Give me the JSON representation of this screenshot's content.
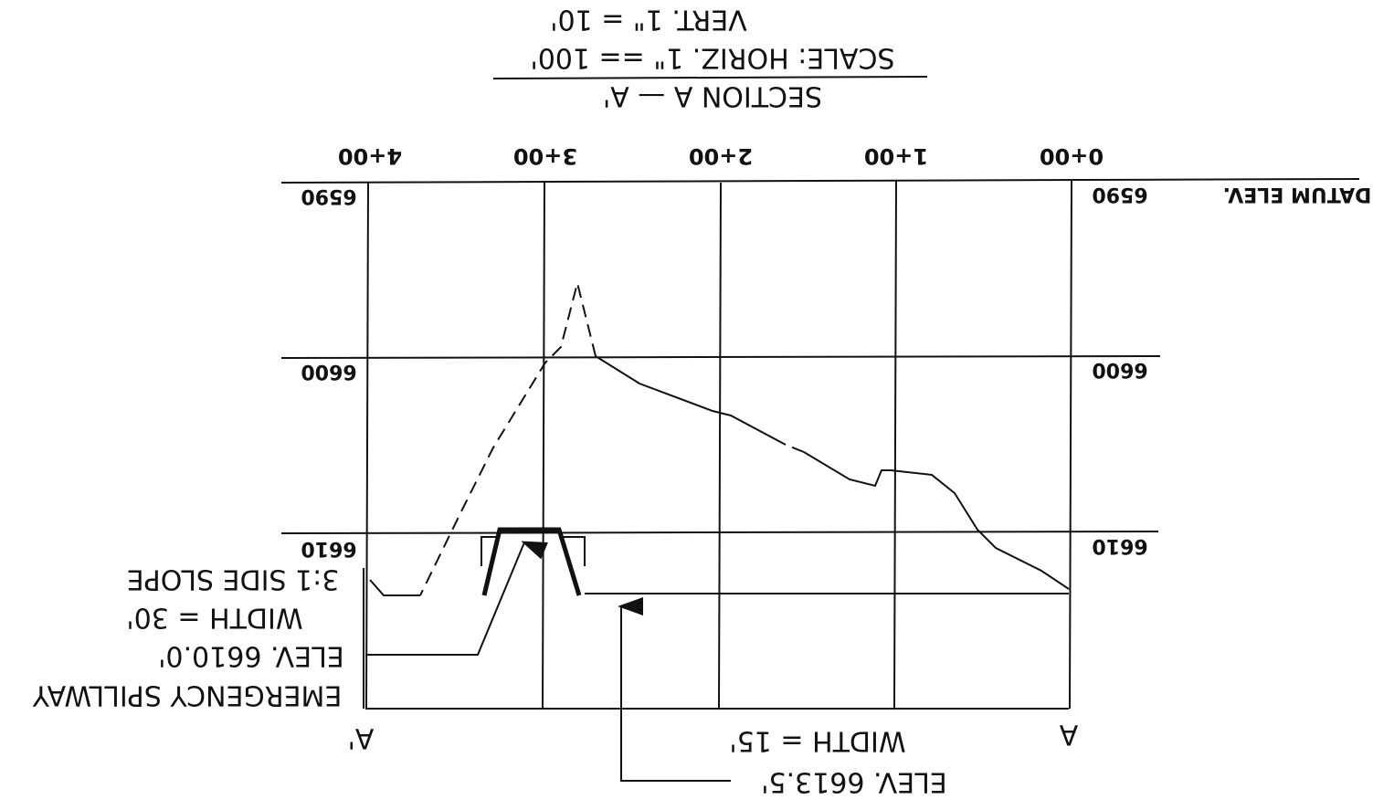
{
  "title": "SECTION A — A'",
  "scale_horizontal": "SCALE: HORIZ. 1\" == 100'",
  "scale_vertical": "VERT. 1\" = 10'",
  "stations": [
    "4+00",
    "3+00",
    "2+00",
    "1+00",
    "0+00"
  ],
  "elevations_left": [
    "6590",
    "6600",
    "6610"
  ],
  "elevations_right": [
    "6590",
    "6600",
    "6610"
  ],
  "datum": "DATUM ELEV.",
  "section_marks": [
    "A",
    "A'"
  ],
  "spillway_notes": [
    "EMERGENCY SPILLWAY",
    "ELEV. 6610.0'",
    "WIDTH = 30'",
    "3:1 SIDE SLOPE"
  ],
  "top_notes": [
    "ELEV. 6613.5'",
    "WIDTH = 15'"
  ]
}
